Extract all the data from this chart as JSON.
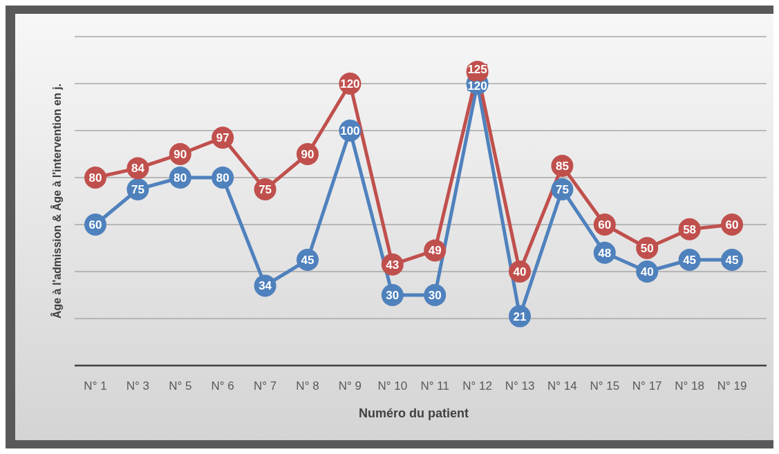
{
  "chart_data": {
    "type": "line",
    "xlabel": "Numéro du patient",
    "ylabel": "Âge à l'admission & Âge à l'intervention en j.",
    "categories": [
      "N° 1",
      "N° 3",
      "N° 5",
      "N° 6",
      "N° 7",
      "N° 8",
      "N° 9",
      "N° 10",
      "N° 11",
      "N° 12",
      "N° 13",
      "N° 14",
      "N° 15",
      "N° 17",
      "N° 18",
      "N° 19"
    ],
    "series": [
      {
        "color": "#4f81bd",
        "values": [
          60,
          75,
          80,
          80,
          34,
          45,
          100,
          30,
          30,
          120,
          21,
          75,
          48,
          40,
          45,
          45
        ]
      },
      {
        "color": "#c0504d",
        "values": [
          80,
          84,
          90,
          97,
          75,
          90,
          120,
          43,
          49,
          125,
          40,
          85,
          60,
          50,
          58,
          60
        ]
      }
    ],
    "ylim": [
      0,
      140
    ],
    "yticks": [
      {
        "value": 0,
        "label": null
      },
      {
        "value": 20,
        "label": null
      },
      {
        "value": 40,
        "label": null
      },
      {
        "value": 60,
        "label": null
      },
      {
        "value": 80,
        "label": null
      },
      {
        "value": 100,
        "label": null
      },
      {
        "value": 120,
        "label": null
      },
      {
        "value": 140,
        "label": null
      }
    ],
    "tick_labels": "x",
    "grid": "y",
    "marker": "circle",
    "line_style": "solid",
    "data_labels": true
  }
}
